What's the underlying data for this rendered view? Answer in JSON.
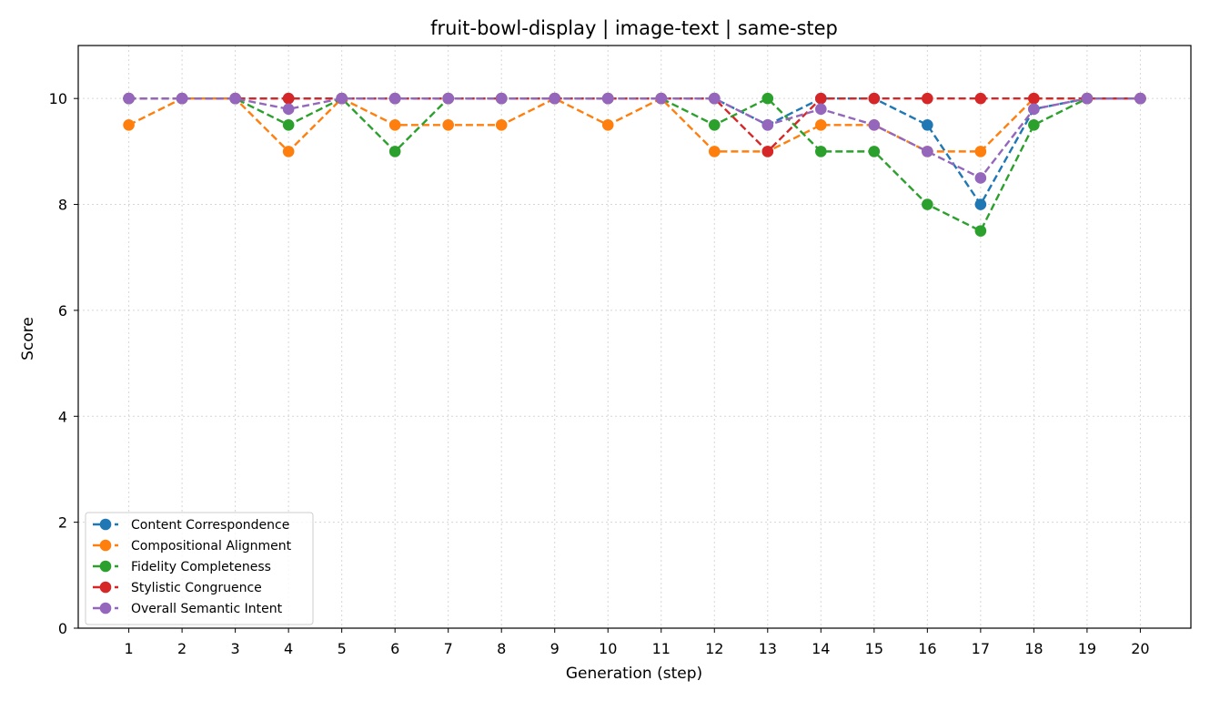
{
  "chart_data": {
    "type": "line",
    "title": "fruit-bowl-display | image-text | same-step",
    "xlabel": "Generation (step)",
    "ylabel": "Score",
    "x": [
      1,
      2,
      3,
      4,
      5,
      6,
      7,
      8,
      9,
      10,
      11,
      12,
      13,
      14,
      15,
      16,
      17,
      18,
      19,
      20
    ],
    "xlim": [
      0.05,
      20.95
    ],
    "ylim": [
      0,
      11
    ],
    "yticks": [
      0,
      2,
      4,
      6,
      8,
      10
    ],
    "grid": true,
    "legend_position": "lower-left",
    "line_style": "dashed",
    "marker": "circle",
    "series": [
      {
        "name": "Content Correspondence",
        "color": "#1f77b4",
        "values": [
          10,
          10,
          10,
          10,
          10,
          10,
          10,
          10,
          10,
          10,
          10,
          10,
          9.5,
          10,
          10,
          9.5,
          8,
          9.8,
          10,
          10
        ]
      },
      {
        "name": "Compositional Alignment",
        "color": "#ff7f0e",
        "values": [
          9.5,
          10,
          10,
          9,
          10,
          9.5,
          9.5,
          9.5,
          10,
          9.5,
          10,
          9,
          9,
          9.5,
          9.5,
          9,
          9,
          10,
          10,
          10
        ]
      },
      {
        "name": "Fidelity Completeness",
        "color": "#2ca02c",
        "values": [
          10,
          10,
          10,
          9.5,
          10,
          9,
          10,
          10,
          10,
          10,
          10,
          9.5,
          10,
          9,
          9,
          8,
          7.5,
          9.5,
          10,
          10
        ]
      },
      {
        "name": "Stylistic Congruence",
        "color": "#d62728",
        "values": [
          10,
          10,
          10,
          10,
          10,
          10,
          10,
          10,
          10,
          10,
          10,
          10,
          9,
          10,
          10,
          10,
          10,
          10,
          10,
          10
        ]
      },
      {
        "name": "Overall Semantic Intent",
        "color": "#9467bd",
        "values": [
          10,
          10,
          10,
          9.8,
          10,
          10,
          10,
          10,
          10,
          10,
          10,
          10,
          9.5,
          9.8,
          9.5,
          9,
          8.5,
          9.8,
          10,
          10
        ]
      }
    ]
  }
}
